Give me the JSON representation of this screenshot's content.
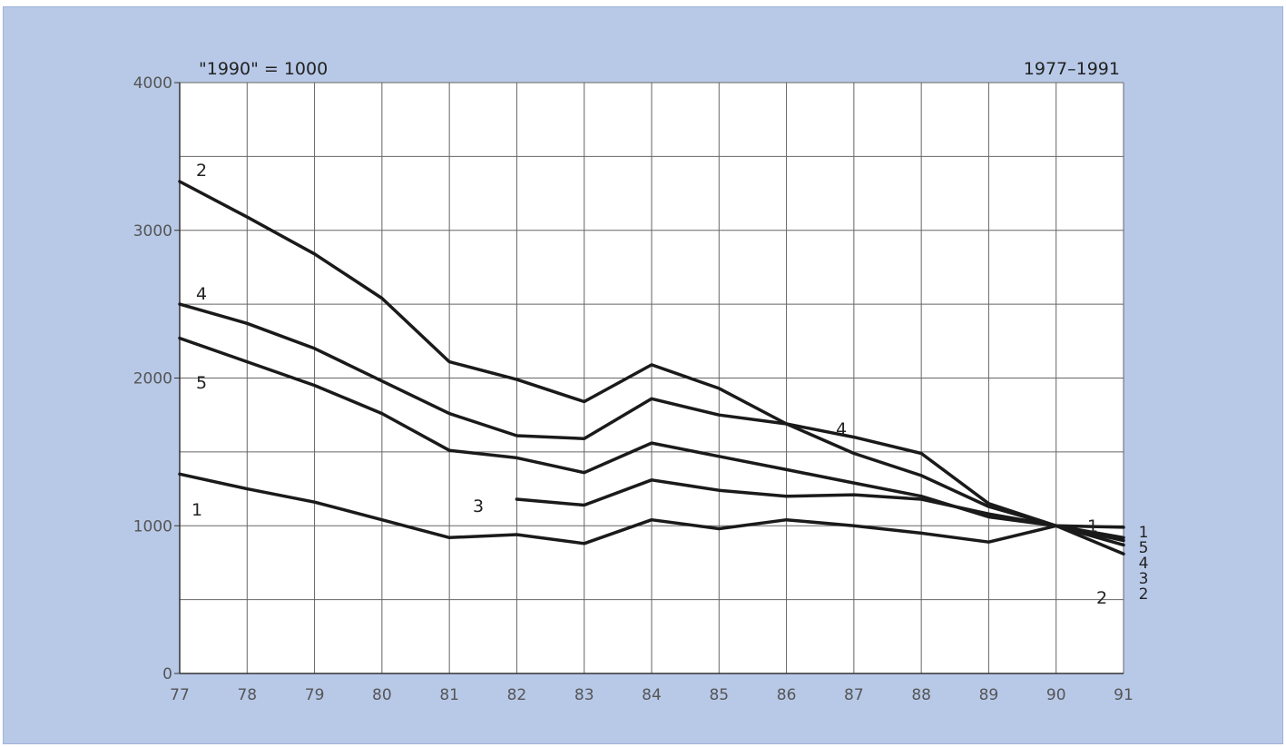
{
  "chart_data": {
    "type": "line",
    "note_left": "\"1990\" = 1000",
    "note_right": "1977–1991",
    "x": [
      "77",
      "78",
      "79",
      "80",
      "81",
      "82",
      "83",
      "84",
      "85",
      "86",
      "87",
      "88",
      "89",
      "90",
      "91"
    ],
    "ylim": [
      0,
      4000
    ],
    "yticks": [
      0,
      1000,
      2000,
      3000,
      4000
    ],
    "grid": true,
    "series": [
      {
        "name": "1",
        "values": [
          1350,
          1250,
          1160,
          1040,
          920,
          940,
          880,
          1040,
          980,
          1040,
          1000,
          950,
          890,
          1000,
          990
        ]
      },
      {
        "name": "2",
        "values": [
          3330,
          3090,
          2840,
          2540,
          2110,
          1990,
          1840,
          2090,
          1930,
          1690,
          1490,
          1340,
          1130,
          1000,
          810
        ]
      },
      {
        "name": "3",
        "values": [
          null,
          null,
          null,
          null,
          null,
          1180,
          1140,
          1310,
          1240,
          1200,
          1210,
          1180,
          1080,
          1000,
          920
        ]
      },
      {
        "name": "4",
        "values": [
          2500,
          2370,
          2200,
          1980,
          1760,
          1610,
          1590,
          1860,
          1750,
          1690,
          1600,
          1490,
          1150,
          1000,
          870
        ]
      },
      {
        "name": "5",
        "values": [
          2270,
          2110,
          1950,
          1760,
          1510,
          1460,
          1360,
          1560,
          1470,
          1380,
          1290,
          1200,
          1060,
          1000,
          900
        ]
      }
    ],
    "inline_labels": [
      "2",
      "4",
      "5",
      "1",
      "3",
      "4",
      "1",
      "2"
    ],
    "end_labels": [
      "1",
      "5",
      "4",
      "3",
      "2"
    ]
  }
}
